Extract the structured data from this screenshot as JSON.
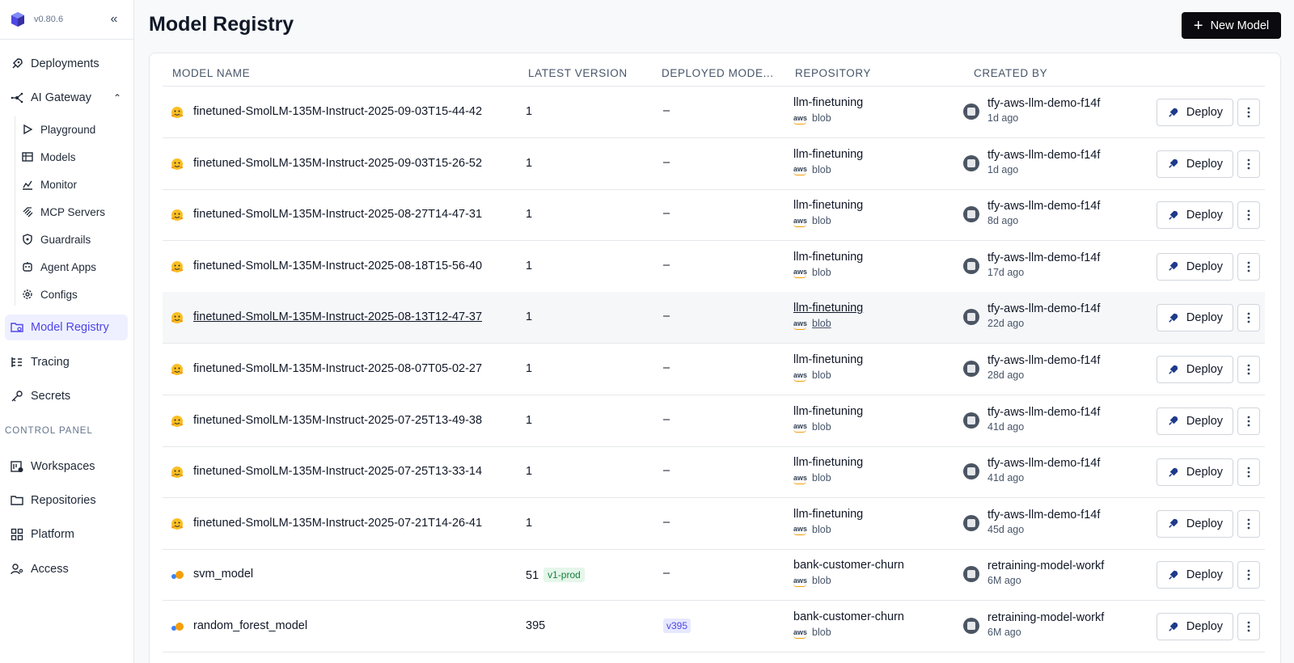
{
  "app": {
    "version": "v0.80.6"
  },
  "sidebar": {
    "items": [
      {
        "label": "Deployments",
        "icon": "rocket-icon"
      },
      {
        "label": "AI Gateway",
        "icon": "gateway-icon"
      },
      {
        "label": "Model Registry",
        "icon": "model-registry-icon"
      },
      {
        "label": "Tracing",
        "icon": "tracing-icon"
      },
      {
        "label": "Secrets",
        "icon": "key-icon"
      }
    ],
    "gateway_sub": [
      {
        "label": "Playground",
        "icon": "play-icon"
      },
      {
        "label": "Models",
        "icon": "table-icon"
      },
      {
        "label": "Monitor",
        "icon": "chart-icon"
      },
      {
        "label": "MCP Servers",
        "icon": "mcp-icon"
      },
      {
        "label": "Guardrails",
        "icon": "shield-icon"
      },
      {
        "label": "Agent Apps",
        "icon": "bot-icon"
      },
      {
        "label": "Configs",
        "icon": "gear-icon"
      }
    ],
    "control_panel_label": "CONTROL PANEL",
    "control_items": [
      {
        "label": "Workspaces",
        "icon": "workspaces-icon"
      },
      {
        "label": "Repositories",
        "icon": "repositories-icon"
      },
      {
        "label": "Platform",
        "icon": "platform-icon"
      },
      {
        "label": "Access",
        "icon": "access-icon"
      }
    ],
    "active": "Model Registry",
    "expanded": "AI Gateway"
  },
  "page": {
    "title": "Model Registry",
    "new_model_label": "New Model"
  },
  "table": {
    "columns": [
      "MODEL NAME",
      "LATEST VERSION",
      "DEPLOYED MODE...",
      "REPOSITORY",
      "CREATED BY"
    ],
    "deploy_label": "Deploy",
    "rows": [
      {
        "name": "finetuned-SmolLM-135M-Instruct-2025-09-03T15-44-42",
        "icon": "hugging-face-icon",
        "version": "1",
        "version_tag": "",
        "deployed": "–",
        "deployed_tag": "",
        "repo": "llm-finetuning",
        "storage": "blob",
        "creator": "tfy-aws-llm-demo-f14f",
        "created": "1d ago"
      },
      {
        "name": "finetuned-SmolLM-135M-Instruct-2025-09-03T15-26-52",
        "icon": "hugging-face-icon",
        "version": "1",
        "version_tag": "",
        "deployed": "–",
        "deployed_tag": "",
        "repo": "llm-finetuning",
        "storage": "blob",
        "creator": "tfy-aws-llm-demo-f14f",
        "created": "1d ago"
      },
      {
        "name": "finetuned-SmolLM-135M-Instruct-2025-08-27T14-47-31",
        "icon": "hugging-face-icon",
        "version": "1",
        "version_tag": "",
        "deployed": "–",
        "deployed_tag": "",
        "repo": "llm-finetuning",
        "storage": "blob",
        "creator": "tfy-aws-llm-demo-f14f",
        "created": "8d ago"
      },
      {
        "name": "finetuned-SmolLM-135M-Instruct-2025-08-18T15-56-40",
        "icon": "hugging-face-icon",
        "version": "1",
        "version_tag": "",
        "deployed": "–",
        "deployed_tag": "",
        "repo": "llm-finetuning",
        "storage": "blob",
        "creator": "tfy-aws-llm-demo-f14f",
        "created": "17d ago"
      },
      {
        "name": "finetuned-SmolLM-135M-Instruct-2025-08-13T12-47-37",
        "icon": "hugging-face-icon",
        "version": "1",
        "version_tag": "",
        "deployed": "–",
        "deployed_tag": "",
        "repo": "llm-finetuning",
        "storage": "blob",
        "creator": "tfy-aws-llm-demo-f14f",
        "created": "22d ago",
        "hover": true
      },
      {
        "name": "finetuned-SmolLM-135M-Instruct-2025-08-07T05-02-27",
        "icon": "hugging-face-icon",
        "version": "1",
        "version_tag": "",
        "deployed": "–",
        "deployed_tag": "",
        "repo": "llm-finetuning",
        "storage": "blob",
        "creator": "tfy-aws-llm-demo-f14f",
        "created": "28d ago"
      },
      {
        "name": "finetuned-SmolLM-135M-Instruct-2025-07-25T13-49-38",
        "icon": "hugging-face-icon",
        "version": "1",
        "version_tag": "",
        "deployed": "–",
        "deployed_tag": "",
        "repo": "llm-finetuning",
        "storage": "blob",
        "creator": "tfy-aws-llm-demo-f14f",
        "created": "41d ago"
      },
      {
        "name": "finetuned-SmolLM-135M-Instruct-2025-07-25T13-33-14",
        "icon": "hugging-face-icon",
        "version": "1",
        "version_tag": "",
        "deployed": "–",
        "deployed_tag": "",
        "repo": "llm-finetuning",
        "storage": "blob",
        "creator": "tfy-aws-llm-demo-f14f",
        "created": "41d ago"
      },
      {
        "name": "finetuned-SmolLM-135M-Instruct-2025-07-21T14-26-41",
        "icon": "hugging-face-icon",
        "version": "1",
        "version_tag": "",
        "deployed": "–",
        "deployed_tag": "",
        "repo": "llm-finetuning",
        "storage": "blob",
        "creator": "tfy-aws-llm-demo-f14f",
        "created": "45d ago"
      },
      {
        "name": "svm_model",
        "icon": "sklearn-icon",
        "version": "51",
        "version_tag": "v1-prod",
        "deployed": "–",
        "deployed_tag": "",
        "repo": "bank-customer-churn",
        "storage": "blob",
        "creator": "retraining-model-workf",
        "created": "6M ago"
      },
      {
        "name": "random_forest_model",
        "icon": "sklearn-icon",
        "version": "395",
        "version_tag": "",
        "deployed": "",
        "deployed_tag": "v395",
        "repo": "bank-customer-churn",
        "storage": "blob",
        "creator": "retraining-model-workf",
        "created": "6M ago"
      }
    ]
  }
}
